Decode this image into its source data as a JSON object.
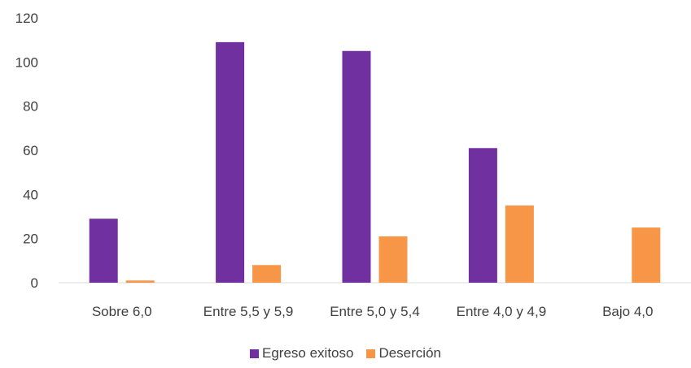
{
  "chart_data": {
    "type": "bar",
    "categories": [
      "Sobre 6,0",
      "Entre 5,5 y 5,9",
      "Entre 5,0 y 5,4",
      "Entre 4,0 y 4,9",
      "Bajo 4,0"
    ],
    "series": [
      {
        "name": "Egreso exitoso",
        "color": "#7030A0",
        "values": [
          29,
          109,
          105,
          61,
          0
        ]
      },
      {
        "name": "Deserción",
        "color": "#F79646",
        "values": [
          1,
          8,
          21,
          35,
          25
        ]
      }
    ],
    "ylim": [
      0,
      120
    ],
    "yticks": [
      0,
      20,
      40,
      60,
      80,
      100,
      120
    ],
    "legend_position": "bottom",
    "grid": false
  }
}
